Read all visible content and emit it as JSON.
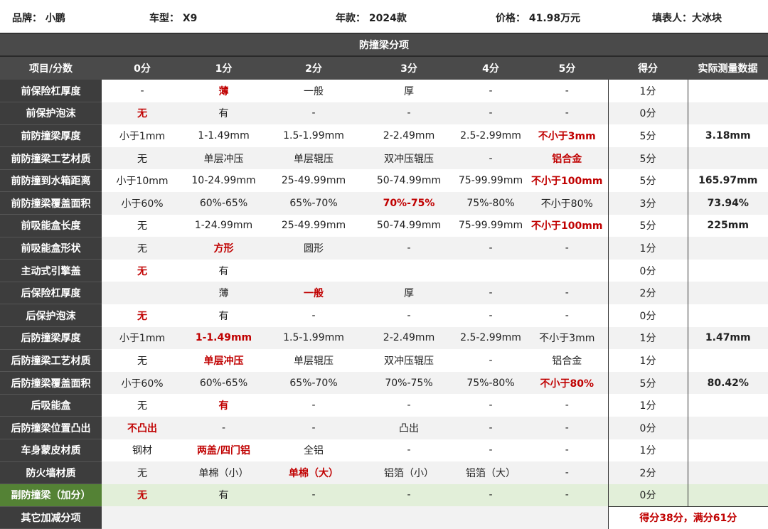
{
  "info": {
    "brand": "品牌：  小鹏",
    "model": "车型：  X9",
    "year": "年款：  2024款",
    "price": "价格：  41.98万元",
    "author": "填表人：大冰块"
  },
  "title": "防撞梁分项",
  "headers": [
    "项目/分数",
    "0分",
    "1分",
    "2分",
    "3分",
    "4分",
    "5分",
    "得分",
    "实际测量数据"
  ],
  "rows": [
    {
      "label": "前保险杠厚度",
      "cells": [
        "-",
        "薄",
        "一般",
        "厚",
        "-",
        "-"
      ],
      "hl": 1,
      "score": "1分",
      "measured": ""
    },
    {
      "label": "前保护泡沫",
      "cells": [
        "无",
        "有",
        "-",
        "-",
        "-",
        "-"
      ],
      "hl": 0,
      "score": "0分",
      "measured": ""
    },
    {
      "label": "前防撞梁厚度",
      "cells": [
        "小于1mm",
        "1-1.49mm",
        "1.5-1.99mm",
        "2-2.49mm",
        "2.5-2.99mm",
        "不小于3mm"
      ],
      "hl": 5,
      "score": "5分",
      "measured": "3.18mm"
    },
    {
      "label": "前防撞梁工艺材质",
      "cells": [
        "无",
        "单层冲压",
        "单层辊压",
        "双冲压辊压",
        "-",
        "铝合金"
      ],
      "hl": 5,
      "score": "5分",
      "measured": ""
    },
    {
      "label": "前防撞到水箱距离",
      "cells": [
        "小于10mm",
        "10-24.99mm",
        "25-49.99mm",
        "50-74.99mm",
        "75-99.99mm",
        "不小于100mm"
      ],
      "hl": 5,
      "score": "5分",
      "measured": "165.97mm"
    },
    {
      "label": "前防撞梁覆盖面积",
      "cells": [
        "小于60%",
        "60%-65%",
        "65%-70%",
        "70%-75%",
        "75%-80%",
        "不小于80%"
      ],
      "hl": 3,
      "score": "3分",
      "measured": "73.94%"
    },
    {
      "label": "前吸能盒长度",
      "cells": [
        "无",
        "1-24.99mm",
        "25-49.99mm",
        "50-74.99mm",
        "75-99.99mm",
        "不小于100mm"
      ],
      "hl": 5,
      "score": "5分",
      "measured": "225mm"
    },
    {
      "label": "前吸能盒形状",
      "cells": [
        "无",
        "方形",
        "圆形",
        "-",
        "-",
        "-"
      ],
      "hl": 1,
      "score": "1分",
      "measured": ""
    },
    {
      "label": "主动式引擎盖",
      "cells": [
        "无",
        "有",
        "",
        "",
        "",
        ""
      ],
      "hl": 0,
      "score": "0分",
      "measured": ""
    },
    {
      "label": "后保险杠厚度",
      "cells": [
        "",
        "薄",
        "一般",
        "厚",
        "-",
        "-"
      ],
      "hl": 2,
      "score": "2分",
      "measured": ""
    },
    {
      "label": "后保护泡沫",
      "cells": [
        "无",
        "有",
        "-",
        "-",
        "-",
        "-"
      ],
      "hl": 0,
      "score": "0分",
      "measured": ""
    },
    {
      "label": "后防撞梁厚度",
      "cells": [
        "小于1mm",
        "1-1.49mm",
        "1.5-1.99mm",
        "2-2.49mm",
        "2.5-2.99mm",
        "不小于3mm"
      ],
      "hl": 1,
      "score": "1分",
      "measured": "1.47mm"
    },
    {
      "label": "后防撞梁工艺材质",
      "cells": [
        "无",
        "单层冲压",
        "单层辊压",
        "双冲压辊压",
        "-",
        "铝合金"
      ],
      "hl": 1,
      "score": "1分",
      "measured": ""
    },
    {
      "label": "后防撞梁覆盖面积",
      "cells": [
        "小于60%",
        "60%-65%",
        "65%-70%",
        "70%-75%",
        "75%-80%",
        "不小于80%"
      ],
      "hl": 5,
      "score": "5分",
      "measured": "80.42%"
    },
    {
      "label": "后吸能盒",
      "cells": [
        "无",
        "有",
        "-",
        "-",
        "-",
        "-"
      ],
      "hl": 1,
      "score": "1分",
      "measured": ""
    },
    {
      "label": "后防撞梁位置凸出",
      "cells": [
        "不凸出",
        "-",
        "-",
        "凸出",
        "-",
        "-"
      ],
      "hl": 0,
      "score": "0分",
      "measured": ""
    },
    {
      "label": "车身蒙皮材质",
      "cells": [
        "钢材",
        "两盖/四门铝",
        "全铝",
        "-",
        "-",
        "-"
      ],
      "hl": 1,
      "score": "1分",
      "measured": ""
    },
    {
      "label": "防火墙材质",
      "cells": [
        "无",
        "单棉（小）",
        "单棉（大）",
        "铝箔（小）",
        "铝箔（大）",
        "-"
      ],
      "hl": 2,
      "score": "2分",
      "measured": ""
    },
    {
      "label": "副防撞梁（加分）",
      "cells": [
        "无",
        "有",
        "-",
        "-",
        "-",
        "-"
      ],
      "hl": 0,
      "score": "0分",
      "measured": "",
      "bonus": true
    }
  ],
  "footer": {
    "label": "其它加减分项",
    "total": "得分38分，满分61分"
  },
  "colors": {
    "highlight": "#c00000",
    "label_bg": "#3d3d3d",
    "bonus_bg": "#548235"
  }
}
